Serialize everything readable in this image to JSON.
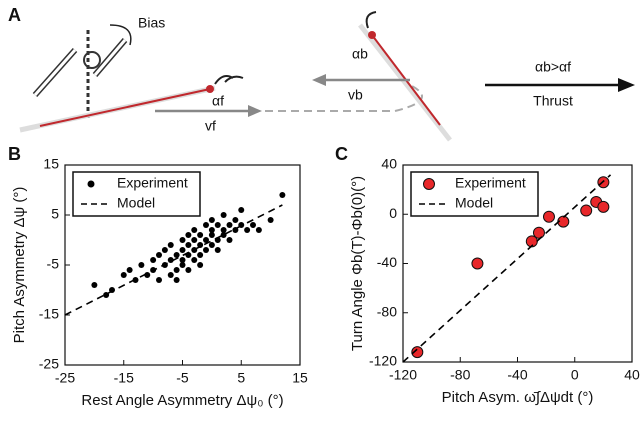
{
  "panels": [
    "A",
    "B",
    "C"
  ],
  "diagram": {
    "labels": [
      "Bias",
      "αf",
      "vf",
      "αb",
      "vb",
      "αb>αf",
      "Thrust"
    ]
  },
  "chart_data": [
    {
      "type": "scatter",
      "xlabel": "Rest Angle Asymmetry Δψ₀ (°)",
      "ylabel": "Pitch Asymmetry Δψ (°)",
      "xlim": [
        -25,
        15
      ],
      "ylim": [
        -25,
        15
      ],
      "xticks": [
        -25,
        -15,
        -5,
        5,
        15
      ],
      "yticks": [
        -25,
        -15,
        -5,
        5,
        15
      ],
      "legend": "upper left",
      "series": [
        {
          "name": "Experiment",
          "color": "#000000",
          "marker": "dot",
          "x": [
            -20,
            -18,
            -17,
            -15,
            -14,
            -13,
            -12,
            -11,
            -10,
            -10,
            -9,
            -9,
            -8,
            -8,
            -7,
            -7,
            -7,
            -6,
            -6,
            -6,
            -5,
            -5,
            -5,
            -5,
            -4,
            -4,
            -4,
            -4,
            -3,
            -3,
            -3,
            -3,
            -2,
            -2,
            -2,
            -2,
            -1,
            -1,
            -1,
            0,
            0,
            0,
            0,
            1,
            1,
            1,
            2,
            2,
            2,
            3,
            3,
            4,
            4,
            5,
            5,
            6,
            7,
            8,
            10,
            12
          ],
          "values": [
            -9,
            -11,
            -10,
            -7,
            -6,
            -8,
            -5,
            -7,
            -4,
            -6,
            -8,
            -3,
            -5,
            -2,
            -7,
            -4,
            -1,
            -6,
            -3,
            -8,
            -5,
            -2,
            -4,
            0,
            -3,
            -6,
            1,
            -1,
            -4,
            -2,
            0,
            2,
            -5,
            -1,
            1,
            -3,
            -2,
            0,
            3,
            -1,
            1,
            2,
            4,
            0,
            3,
            -2,
            2,
            5,
            1,
            3,
            0,
            4,
            2,
            6,
            3,
            2,
            3,
            2,
            4,
            9
          ]
        },
        {
          "name": "Model",
          "color": "#000000",
          "style": "dashed",
          "x": [
            -25,
            12
          ],
          "values": [
            -15,
            7
          ]
        }
      ]
    },
    {
      "type": "scatter",
      "xlabel": "Pitch Asym. ω̄∫Δψdt (°)",
      "ylabel": "Turn Angle Φb(T)-Φb(0)(°)",
      "xlim": [
        -120,
        40
      ],
      "ylim": [
        -120,
        40
      ],
      "xticks": [
        -120,
        -80,
        -40,
        0,
        40
      ],
      "yticks": [
        -120,
        -80,
        -40,
        0,
        40
      ],
      "legend": "upper left",
      "series": [
        {
          "name": "Experiment",
          "color": "#e8272a",
          "marker": "circle",
          "x": [
            -110,
            -68,
            -30,
            -25,
            -18,
            -8,
            8,
            15,
            20,
            20
          ],
          "values": [
            -112,
            -40,
            -22,
            -15,
            -2,
            -6,
            3,
            10,
            26,
            6
          ]
        },
        {
          "name": "Model",
          "color": "#000000",
          "style": "dashed",
          "x": [
            -120,
            25
          ],
          "values": [
            -120,
            32
          ]
        }
      ]
    }
  ]
}
